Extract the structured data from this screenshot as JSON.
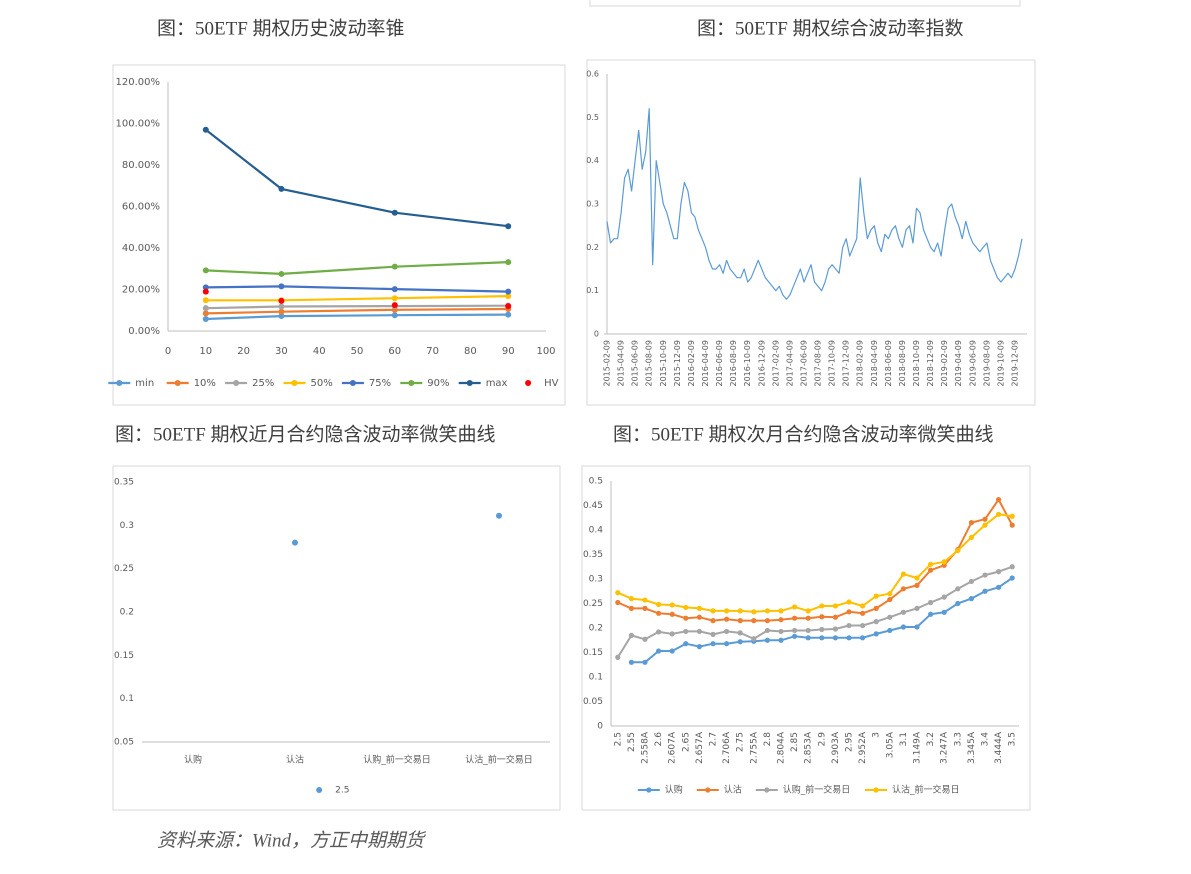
{
  "captions": [
    "图：50ETF 期权历史波动率锥",
    "图：50ETF 期权综合波动率指数",
    "图：50ETF 期权近月合约隐含波动率微笑曲线",
    "图：50ETF 期权次月合约隐含波动率微笑曲线"
  ],
  "source": "资料来源：Wind，方正中期期货",
  "chart_data": [
    {
      "type": "line",
      "x": [
        10,
        30,
        60,
        90
      ],
      "xlim": [
        0,
        100
      ],
      "xticks": [
        0,
        10,
        20,
        30,
        40,
        50,
        60,
        70,
        80,
        90,
        100
      ],
      "ylim": [
        0,
        120
      ],
      "yticks": [
        {
          "value": 0,
          "label": "0.00%"
        },
        {
          "value": 20,
          "label": "20.00%"
        },
        {
          "value": 40,
          "label": "40.00%"
        },
        {
          "value": 60,
          "label": "60.00%"
        },
        {
          "value": 80,
          "label": "80.00%"
        },
        {
          "value": 100,
          "label": "100.00%"
        },
        {
          "value": 120,
          "label": "120.00%"
        }
      ],
      "markers": true,
      "legend": "bottom",
      "grid": false,
      "series": [
        {
          "name": "min",
          "color": "#5b9bd5",
          "values": [
            5.8,
            7.2,
            7.6,
            7.9
          ]
        },
        {
          "name": "10%",
          "color": "#ed7d31",
          "values": [
            8.5,
            9.3,
            10.2,
            10.6
          ]
        },
        {
          "name": "25%",
          "color": "#a5a5a5",
          "values": [
            11.0,
            11.8,
            12.0,
            12.2
          ]
        },
        {
          "name": "50%",
          "color": "#ffc000",
          "values": [
            14.8,
            14.8,
            15.8,
            16.8
          ]
        },
        {
          "name": "75%",
          "color": "#4472c4",
          "values": [
            21.0,
            21.5,
            20.2,
            19.0
          ]
        },
        {
          "name": "90%",
          "color": "#70ad47",
          "values": [
            29.2,
            27.5,
            31.0,
            33.2
          ]
        },
        {
          "name": "max",
          "color": "#255e91",
          "values": [
            97.0,
            68.5,
            57.0,
            50.5
          ]
        },
        {
          "name": "HV",
          "color": "#ff0000",
          "type": "scatter",
          "values": [
            19.0,
            14.5,
            12.5,
            12.0
          ]
        }
      ]
    },
    {
      "type": "line",
      "color": "#5b9bd5",
      "ylim": [
        0,
        0.6
      ],
      "yticks": [
        0,
        0.1,
        0.2,
        0.3,
        0.4,
        0.5,
        0.6
      ],
      "grid": false,
      "markers": false,
      "categories": [
        "2015-02-09",
        null,
        null,
        null,
        "2015-04-09",
        null,
        null,
        null,
        "2015-06-09",
        null,
        null,
        null,
        "2015-08-09",
        null,
        null,
        null,
        "2015-10-09",
        null,
        null,
        null,
        "2015-12-09",
        null,
        null,
        null,
        "2016-02-09",
        null,
        null,
        null,
        "2016-04-09",
        null,
        null,
        null,
        "2016-06-09",
        null,
        null,
        null,
        "2016-08-09",
        null,
        null,
        null,
        "2016-10-09",
        null,
        null,
        null,
        "2016-12-09",
        null,
        null,
        null,
        "2017-02-09",
        null,
        null,
        null,
        "2017-04-09",
        null,
        null,
        null,
        "2017-06-09",
        null,
        null,
        null,
        "2017-08-09",
        null,
        null,
        null,
        "2017-10-09",
        null,
        null,
        null,
        "2017-12-09",
        null,
        null,
        null,
        "2018-02-09",
        null,
        null,
        null,
        "2018-04-09",
        null,
        null,
        null,
        "2018-06-09",
        null,
        null,
        null,
        "2018-08-09",
        null,
        null,
        null,
        "2018-10-09",
        null,
        null,
        null,
        "2018-12-09",
        null,
        null,
        null,
        "2019-02-09",
        null,
        null,
        null,
        "2019-04-09",
        null,
        null,
        null,
        "2019-06-09",
        null,
        null,
        null,
        "2019-08-09",
        null,
        null,
        null,
        "2019-10-09",
        null,
        null,
        null,
        "2019-12-09",
        null,
        null
      ],
      "values": [
        0.26,
        0.21,
        0.22,
        0.22,
        0.28,
        0.36,
        0.38,
        0.33,
        0.4,
        0.47,
        0.38,
        0.42,
        0.52,
        0.16,
        0.4,
        0.35,
        0.3,
        0.28,
        0.25,
        0.22,
        0.22,
        0.3,
        0.35,
        0.33,
        0.28,
        0.27,
        0.24,
        0.22,
        0.2,
        0.17,
        0.15,
        0.15,
        0.16,
        0.14,
        0.17,
        0.15,
        0.14,
        0.13,
        0.13,
        0.15,
        0.12,
        0.13,
        0.15,
        0.17,
        0.15,
        0.13,
        0.12,
        0.11,
        0.1,
        0.11,
        0.09,
        0.08,
        0.09,
        0.11,
        0.13,
        0.15,
        0.12,
        0.14,
        0.16,
        0.12,
        0.11,
        0.1,
        0.12,
        0.15,
        0.16,
        0.15,
        0.14,
        0.2,
        0.22,
        0.18,
        0.2,
        0.22,
        0.36,
        0.28,
        0.22,
        0.24,
        0.25,
        0.21,
        0.19,
        0.23,
        0.22,
        0.24,
        0.25,
        0.22,
        0.2,
        0.24,
        0.25,
        0.21,
        0.29,
        0.28,
        0.24,
        0.22,
        0.2,
        0.19,
        0.21,
        0.18,
        0.24,
        0.29,
        0.3,
        0.27,
        0.25,
        0.22,
        0.26,
        0.23,
        0.21,
        0.2,
        0.19,
        0.2,
        0.21,
        0.17,
        0.15,
        0.13,
        0.12,
        0.13,
        0.14,
        0.13,
        0.15,
        0.18,
        0.22
      ]
    },
    {
      "type": "scatter",
      "categories": [
        "认购",
        "认沽",
        "认购_前一交易日",
        "认沽_前一交易日"
      ],
      "ylim": [
        0.05,
        0.35
      ],
      "yticks": [
        0.05,
        0.1,
        0.15,
        0.2,
        0.25,
        0.3,
        0.35
      ],
      "grid": false,
      "legend": "bottom",
      "series": [
        {
          "name": "2.5",
          "color": "#5b9bd5",
          "values": [
            null,
            0.28,
            null,
            0.311
          ]
        }
      ]
    },
    {
      "type": "line",
      "categories": [
        "2.5",
        "2.55",
        "2.558A",
        "2.6",
        "2.607A",
        "2.65",
        "2.657A",
        "2.7",
        "2.706A",
        "2.75",
        "2.755A",
        "2.8",
        "2.804A",
        "2.85",
        "2.853A",
        "2.9",
        "2.903A",
        "2.95",
        "2.952A",
        "3",
        "3.05A",
        "3.1",
        "3.149A",
        "3.2",
        "3.247A",
        "3.3",
        "3.345A",
        "3.4",
        "3.444A",
        "3.5"
      ],
      "ylim": [
        0,
        0.5
      ],
      "yticks": [
        0,
        0.05,
        0.1,
        0.15,
        0.2,
        0.25,
        0.3,
        0.35,
        0.4,
        0.45,
        0.5
      ],
      "grid": false,
      "markers": true,
      "legend": "bottom",
      "series": [
        {
          "name": "认购",
          "color": "#5b9bd5",
          "values": [
            null,
            0.13,
            0.13,
            0.153,
            0.153,
            0.168,
            0.162,
            0.168,
            0.168,
            0.172,
            0.173,
            0.175,
            0.175,
            0.183,
            0.18,
            0.18,
            0.18,
            0.18,
            0.18,
            0.188,
            0.195,
            0.202,
            0.202,
            0.228,
            0.232,
            0.25,
            0.26,
            0.275,
            0.283,
            0.302
          ]
        },
        {
          "name": "认沽",
          "color": "#ed7d31",
          "values": [
            0.252,
            0.24,
            0.24,
            0.23,
            0.228,
            0.22,
            0.222,
            0.215,
            0.218,
            0.215,
            0.215,
            0.215,
            0.217,
            0.22,
            0.22,
            0.223,
            0.222,
            0.233,
            0.23,
            0.24,
            0.258,
            0.28,
            0.287,
            0.318,
            0.328,
            0.36,
            0.415,
            0.422,
            0.462,
            0.41
          ]
        },
        {
          "name": "认购_前一交易日",
          "color": "#a5a5a5",
          "values": [
            0.14,
            0.185,
            0.177,
            0.192,
            0.188,
            0.193,
            0.193,
            0.187,
            0.193,
            0.19,
            0.178,
            0.195,
            0.193,
            0.195,
            0.195,
            0.197,
            0.198,
            0.205,
            0.205,
            0.213,
            0.222,
            0.232,
            0.24,
            0.252,
            0.263,
            0.28,
            0.295,
            0.308,
            0.315,
            0.325
          ]
        },
        {
          "name": "认沽_前一交易日",
          "color": "#ffc000",
          "values": [
            0.272,
            0.26,
            0.257,
            0.248,
            0.247,
            0.242,
            0.24,
            0.235,
            0.235,
            0.235,
            0.233,
            0.235,
            0.235,
            0.243,
            0.235,
            0.245,
            0.245,
            0.253,
            0.245,
            0.265,
            0.27,
            0.31,
            0.302,
            0.33,
            0.335,
            0.358,
            0.385,
            0.41,
            0.432,
            0.428
          ]
        }
      ]
    }
  ]
}
